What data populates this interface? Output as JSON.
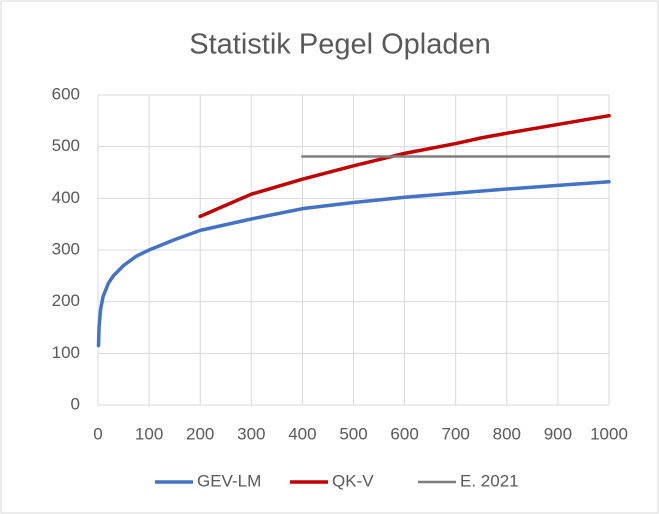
{
  "chart_data": {
    "type": "line",
    "title": "Statistik Pegel Opladen",
    "series": [
      {
        "name": "GEV-LM",
        "color": "#4472c4",
        "x": [
          1,
          2,
          5,
          10,
          20,
          30,
          50,
          75,
          100,
          150,
          200,
          300,
          400,
          500,
          600,
          700,
          800,
          900,
          1000
        ],
        "values": [
          115,
          150,
          185,
          210,
          235,
          250,
          270,
          288,
          300,
          320,
          338,
          360,
          380,
          392,
          402,
          410,
          418,
          425,
          432
        ]
      },
      {
        "name": "QK-V",
        "color": "#c00000",
        "x": [
          200,
          300,
          400,
          500,
          600,
          700,
          750,
          800,
          900,
          1000
        ],
        "values": [
          365,
          408,
          437,
          463,
          487,
          506,
          517,
          526,
          543,
          560
        ]
      },
      {
        "name": "E. 2021",
        "color": "#7f7f7f",
        "x": [
          400,
          1000
        ],
        "values": [
          481,
          481
        ]
      }
    ],
    "xlim": [
      0,
      1000
    ],
    "xticks": [
      0,
      100,
      200,
      300,
      400,
      500,
      600,
      700,
      800,
      900,
      1000
    ],
    "ylim": [
      0,
      600
    ],
    "yticks": [
      0,
      100,
      200,
      300,
      400,
      500,
      600
    ],
    "grid": true,
    "legend": "bottom"
  }
}
